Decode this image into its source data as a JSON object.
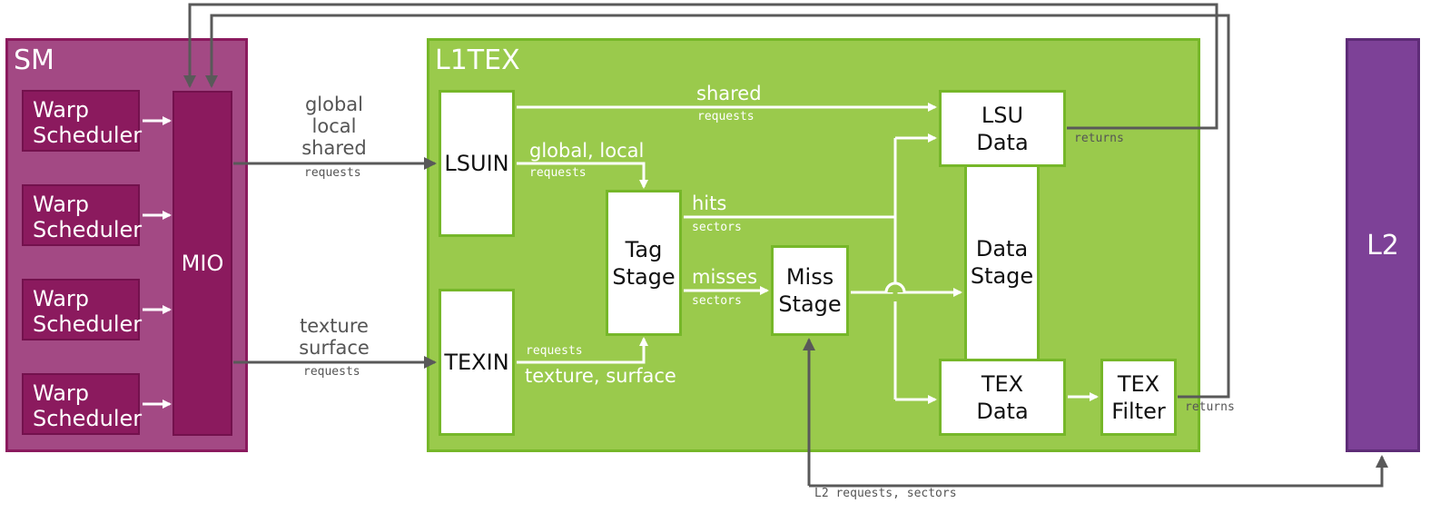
{
  "sm": {
    "title": "SM",
    "warp_schedulers": [
      {
        "label": "Warp Scheduler"
      },
      {
        "label": "Warp Scheduler"
      },
      {
        "label": "Warp Scheduler"
      },
      {
        "label": "Warp Scheduler"
      }
    ],
    "mio": "MIO"
  },
  "l1tex": {
    "title": "L1TEX",
    "lsuin": "LSUIN",
    "texin": "TEXIN",
    "tag_stage": "Tag Stage",
    "miss_stage": "Miss Stage",
    "lsu_data": "LSU Data",
    "data_stage": "Data Stage",
    "tex_data": "TEX Data",
    "tex_filter": "TEX Filter"
  },
  "l2": {
    "title": "L2"
  },
  "labels": {
    "mio_lsuin": "global local shared",
    "mio_lsuin_lines": [
      "global",
      "local",
      "shared"
    ],
    "mio_lsuin_sub": "requests",
    "mio_texin_lines": [
      "texture",
      "surface"
    ],
    "mio_texin_sub": "requests",
    "shared": "shared",
    "shared_sub": "requests",
    "global_local": "global, local",
    "global_local_sub": "requests",
    "hits": "hits",
    "hits_sub": "sectors",
    "misses": "misses",
    "misses_sub": "sectors",
    "tex_req_sub": "requests",
    "texture_surface": "texture, surface",
    "returns_lsu": "returns",
    "returns_tex": "returns",
    "l2_requests": "L2 requests, sectors"
  },
  "colors": {
    "sm_fill": "#a34984",
    "sm_dark": "#8b1a5e",
    "l1_fill": "#9aca4c",
    "l1_border": "#76b729",
    "l2_fill": "#7d4197",
    "arrow_grey": "#595959",
    "arrow_white": "#ffffff"
  }
}
